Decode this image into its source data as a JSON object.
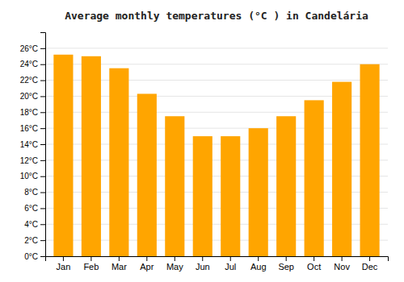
{
  "chart_data": {
    "type": "bar",
    "title": "Average monthly temperatures (°C ) in Candelária",
    "categories": [
      "Jan",
      "Feb",
      "Mar",
      "Apr",
      "May",
      "Jun",
      "Jul",
      "Aug",
      "Sep",
      "Oct",
      "Nov",
      "Dec"
    ],
    "values": [
      25.2,
      25.0,
      23.5,
      20.3,
      17.5,
      15.0,
      15.0,
      16.0,
      17.5,
      19.5,
      21.8,
      24.0
    ],
    "color": "#FFA500",
    "ylim": [
      0,
      28
    ],
    "yticks": [
      {
        "value": 0,
        "label": "0°C"
      },
      {
        "value": 2,
        "label": "2°C"
      },
      {
        "value": 4,
        "label": "4°C"
      },
      {
        "value": 6,
        "label": "6°C"
      },
      {
        "value": 8,
        "label": "8°C"
      },
      {
        "value": 10,
        "label": "10°C"
      },
      {
        "value": 12,
        "label": "12°C"
      },
      {
        "value": 14,
        "label": "14°C"
      },
      {
        "value": 16,
        "label": "16°C"
      },
      {
        "value": 18,
        "label": "18°C"
      },
      {
        "value": 20,
        "label": "20°C"
      },
      {
        "value": 22,
        "label": "22°C"
      },
      {
        "value": 24,
        "label": "24°C"
      },
      {
        "value": 26,
        "label": "26°C"
      }
    ],
    "grid": true
  }
}
